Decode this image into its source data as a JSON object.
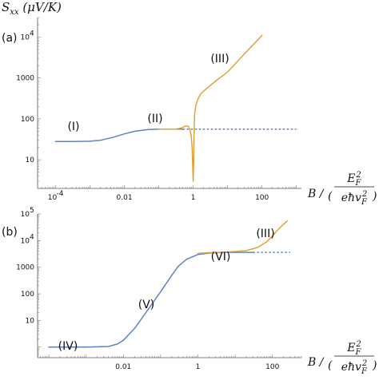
{
  "chart_data": [
    {
      "panel_label": "(a)",
      "type": "line",
      "xscale": "log",
      "yscale": "log",
      "xlim": [
        3e-05,
        1400
      ],
      "ylim": [
        2,
        30000
      ],
      "ylabel": "S_xx (μV/K)",
      "xlabel": "B / (E_F² / eħv_F²)",
      "xticks": [
        {
          "value": 0.0001,
          "label": "10",
          "sup": "-4"
        },
        {
          "value": 0.01,
          "label": "0.01"
        },
        {
          "value": 1,
          "label": "1"
        },
        {
          "value": 100,
          "label": "100"
        }
      ],
      "yticks": [
        {
          "value": 10,
          "label": "10"
        },
        {
          "value": 100,
          "label": "100"
        },
        {
          "value": 1000,
          "label": "1000"
        },
        {
          "value": 10000,
          "label": "10",
          "sup": "4"
        }
      ],
      "series": [
        {
          "color": "#5b84c4",
          "style": "solid",
          "x": [
            0.0001,
            0.0003,
            0.001,
            0.002,
            0.005,
            0.01,
            0.02,
            0.05,
            0.1,
            0.3,
            0.5
          ],
          "y": [
            28,
            28,
            28.5,
            30,
            36,
            43,
            50,
            55,
            56,
            56,
            56
          ]
        },
        {
          "color": "#5b84c4",
          "style": "dashed",
          "x": [
            0.5,
            1,
            10,
            100,
            1000
          ],
          "y": [
            56,
            56,
            56,
            56,
            56
          ]
        },
        {
          "color": "#e0a33a",
          "style": "solid",
          "x": [
            0.1,
            0.3,
            0.45,
            0.6,
            0.72,
            0.8,
            0.87,
            0.93,
            0.97,
            1.0,
            1.03,
            1.06,
            1.1,
            1.2,
            1.4,
            1.7,
            2.5,
            5,
            10,
            30,
            100
          ],
          "y": [
            56,
            56,
            60,
            67,
            66,
            55,
            40,
            20,
            6,
            3,
            8,
            40,
            130,
            220,
            320,
            420,
            560,
            900,
            1400,
            3800,
            11000
          ]
        }
      ],
      "annotations": [
        "(I)",
        "(II)",
        "(III)"
      ]
    },
    {
      "panel_label": "(b)",
      "type": "line",
      "xscale": "log",
      "yscale": "log",
      "xlim": [
        5e-05,
        600
      ],
      "ylim": [
        0.4,
        100000
      ],
      "xlabel": "B / (E_F² / eħv_F²)",
      "xticks": [
        {
          "value": 0.01,
          "label": "0.01"
        },
        {
          "value": 1,
          "label": "1"
        },
        {
          "value": 100,
          "label": "100"
        }
      ],
      "yticks": [
        {
          "value": 10,
          "label": "10"
        },
        {
          "value": 100,
          "label": "100"
        },
        {
          "value": 1000,
          "label": "1000"
        },
        {
          "value": 10000,
          "label": "10",
          "sup": "4"
        },
        {
          "value": 100000,
          "label": "10",
          "sup": "5"
        }
      ],
      "series": [
        {
          "color": "#5b84c4",
          "style": "solid",
          "x": [
            0.0001,
            0.001,
            0.004,
            0.007,
            0.01,
            0.02,
            0.05,
            0.1,
            0.2,
            0.3,
            0.5,
            1,
            2,
            5,
            10,
            20,
            30
          ],
          "y": [
            1,
            1,
            1.05,
            1.3,
            1.8,
            5,
            30,
            120,
            500,
            1100,
            2000,
            3000,
            3400,
            3550,
            3600,
            3600,
            3600
          ]
        },
        {
          "color": "#5b84c4",
          "style": "dashed",
          "x": [
            30,
            100,
            300
          ],
          "y": [
            3600,
            3600,
            3600
          ]
        },
        {
          "color": "#e0a33a",
          "style": "solid",
          "x": [
            1,
            2,
            5,
            10,
            20,
            40,
            70,
            100,
            150,
            250
          ],
          "y": [
            3300,
            3500,
            3700,
            3900,
            4200,
            5500,
            9000,
            15000,
            28000,
            55000
          ]
        }
      ],
      "annotations": [
        "(IV)",
        "(V)",
        "(VI)",
        "(III)"
      ]
    }
  ]
}
